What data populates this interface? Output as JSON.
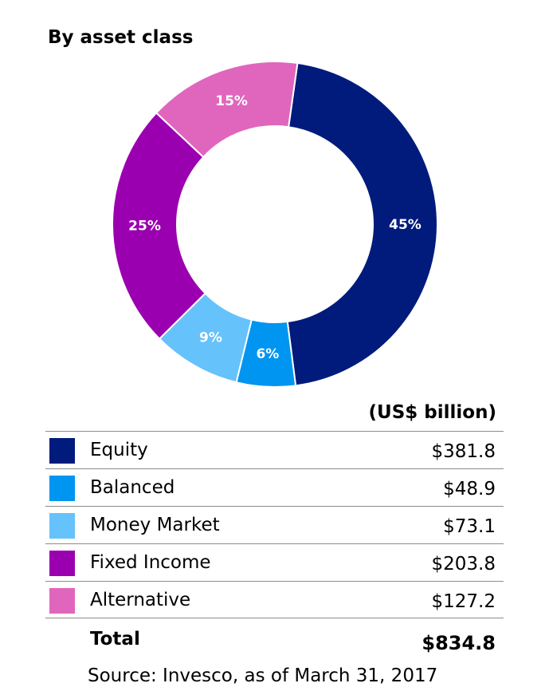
{
  "chart_data": {
    "type": "pie",
    "title": "By asset class",
    "donut": true,
    "slices": [
      {
        "label": "Equity",
        "percent": 45,
        "percent_label": "45%",
        "value": 381.8,
        "value_label": "$381.8",
        "color": "#001b7c"
      },
      {
        "label": "Balanced",
        "percent": 6,
        "percent_label": "6%",
        "value": 48.9,
        "value_label": "$48.9",
        "color": "#0095f0"
      },
      {
        "label": "Money Market",
        "percent": 9,
        "percent_label": "9%",
        "value": 73.1,
        "value_label": "$73.1",
        "color": "#66c2fb"
      },
      {
        "label": "Fixed Income",
        "percent": 25,
        "percent_label": "25%",
        "value": 203.8,
        "value_label": "$203.8",
        "color": "#9b00b0"
      },
      {
        "label": "Alternative",
        "percent": 15,
        "percent_label": "15%",
        "value": 127.2,
        "value_label": "$127.2",
        "color": "#e066bd"
      }
    ],
    "units": "(US$ billion)",
    "total_label": "Total",
    "total_value": "$834.8",
    "source": "Source: Invesco, as of March 31, 2017"
  }
}
